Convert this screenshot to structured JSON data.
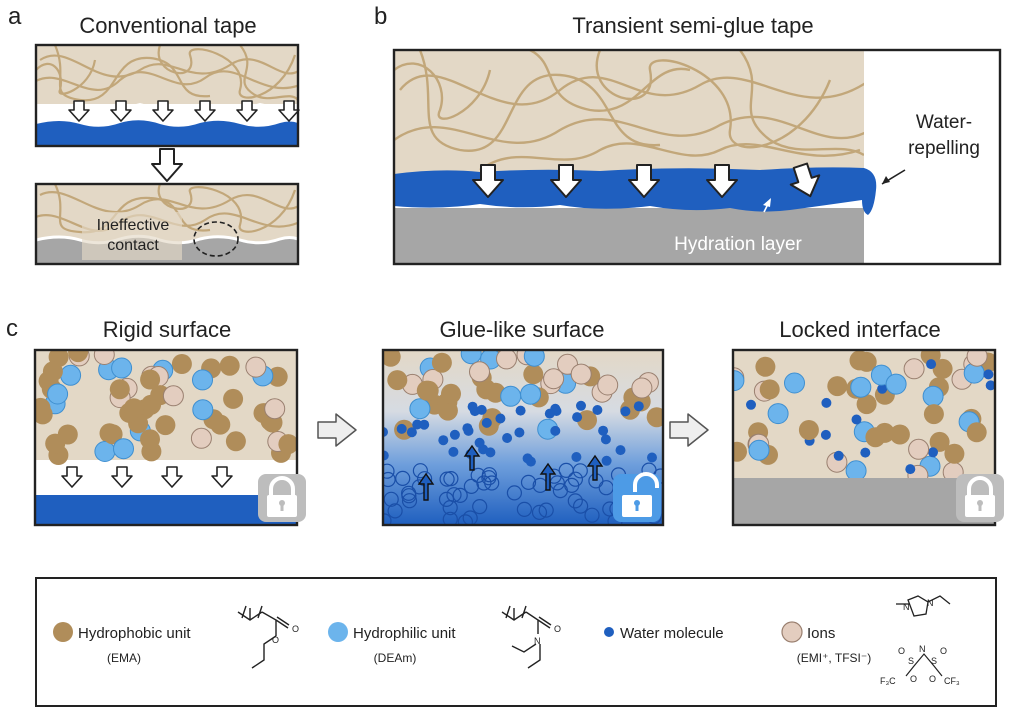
{
  "panel_a": {
    "letter": "a",
    "title": "Conventional tape",
    "annotation_line1": "Ineffective",
    "annotation_line2": "contact"
  },
  "panel_b": {
    "letter": "b",
    "title": "Transient semi-glue tape",
    "callout_line1": "Water-",
    "callout_line2": "repelling",
    "hydration_label": "Hydration layer"
  },
  "panel_c": {
    "letter": "c",
    "titles": [
      "Rigid surface",
      "Glue-like surface",
      "Locked interface"
    ]
  },
  "legend": {
    "items": [
      {
        "label": "Hydrophobic unit",
        "sub": "(EMA)",
        "color": "#b08d5a"
      },
      {
        "label": "Hydrophilic unit",
        "sub": "(DEAm)",
        "color": "#6cb4ec"
      },
      {
        "label": "Water molecule",
        "sub": "",
        "color": "#1f5fbf"
      },
      {
        "label": "Ions",
        "sub": "(EMI⁺, TFSI⁻)",
        "color": "#e3cdbf"
      }
    ],
    "chem": {
      "o1": "O",
      "o2": "O",
      "n1": "N",
      "o3": "O",
      "n_plus": "N",
      "n_minus": "N",
      "s1": "S",
      "s2": "S",
      "o4": "O",
      "o5": "O",
      "o6": "O",
      "o7": "O",
      "cf3_left": "F₃C",
      "cf3_right": "CF₃"
    }
  },
  "colors": {
    "tape_beige": "#e3d8c6",
    "fiber": "#c2a77a",
    "water": "#1f5fbf",
    "substrate": "#a6a6a6",
    "lock_closed": "#bdbdbd",
    "lock_open": "#4d9be6"
  }
}
